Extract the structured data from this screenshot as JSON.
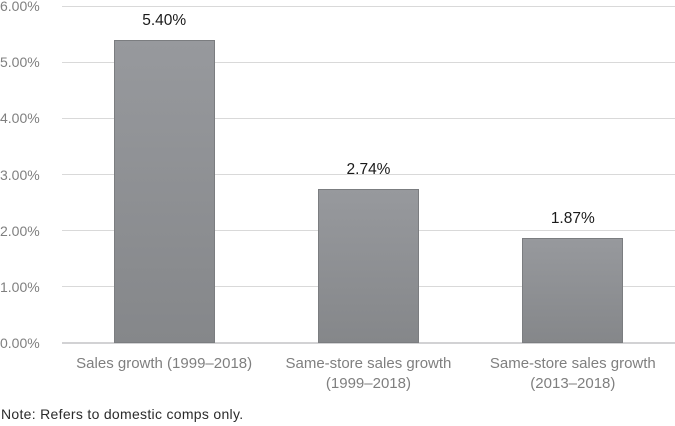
{
  "chart_data": {
    "type": "bar",
    "title": "",
    "xlabel": "",
    "ylabel": "",
    "categories": [
      "Sales growth (1999–2018)",
      "Same-store sales growth (1999–2018)",
      "Same-store sales growth (2013–2018)"
    ],
    "values": [
      5.4,
      2.74,
      1.87
    ],
    "value_labels": [
      "5.40%",
      "2.74%",
      "1.87%"
    ],
    "ylim": [
      0,
      6
    ],
    "ytick_step": 1,
    "ytick_labels": [
      "0.00%",
      "1.00%",
      "2.00%",
      "3.00%",
      "4.00%",
      "5.00%",
      "6.00%"
    ],
    "grid": true,
    "legend": "none",
    "colors": {
      "background": "#ffffff",
      "bar_fill_top": "#97999d",
      "bar_fill_bottom": "#85878a",
      "bar_edge": "#7b7d80",
      "gridline": "#d9d9d9",
      "axis_line": "#d2d2d4",
      "axis_text": "#7f7f7f",
      "value_label": "#1a1a1a",
      "note_text": "#2b2b2b"
    }
  },
  "note": {
    "text": "Note: Refers to domestic comps only."
  }
}
